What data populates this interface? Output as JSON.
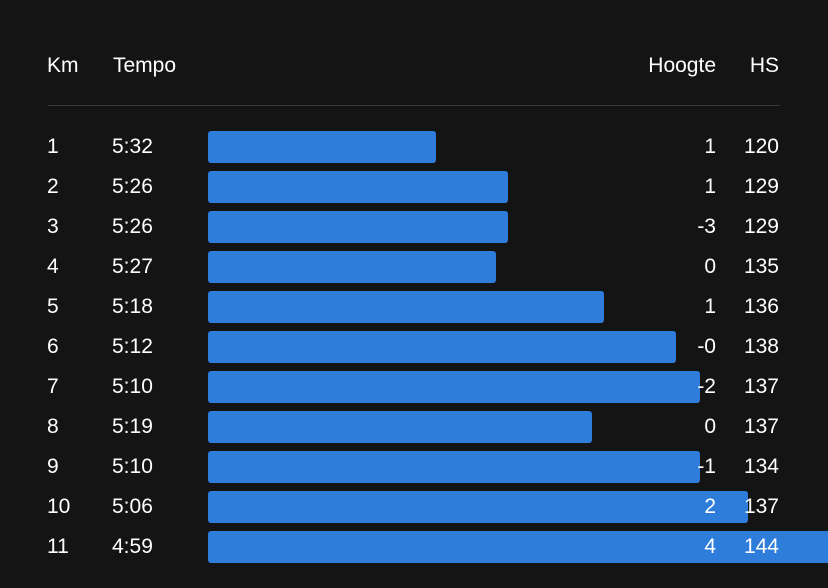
{
  "colors": {
    "background": "#141414",
    "bar": "#2f7ddb",
    "divider": "#3a3a3a",
    "text": "#ffffff"
  },
  "header": {
    "km": "Km",
    "tempo": "Tempo",
    "hoogte": "Hoogte",
    "hs": "HS"
  },
  "splits": [
    {
      "km": "1",
      "tempo": "5:32",
      "hoogte": "1",
      "hs": "120",
      "pace_seconds": 332
    },
    {
      "km": "2",
      "tempo": "5:26",
      "hoogte": "1",
      "hs": "129",
      "pace_seconds": 326
    },
    {
      "km": "3",
      "tempo": "5:26",
      "hoogte": "-3",
      "hs": "129",
      "pace_seconds": 326
    },
    {
      "km": "4",
      "tempo": "5:27",
      "hoogte": "0",
      "hs": "135",
      "pace_seconds": 327
    },
    {
      "km": "5",
      "tempo": "5:18",
      "hoogte": "1",
      "hs": "136",
      "pace_seconds": 318
    },
    {
      "km": "6",
      "tempo": "5:12",
      "hoogte": "-0",
      "hs": "138",
      "pace_seconds": 312
    },
    {
      "km": "7",
      "tempo": "5:10",
      "hoogte": "-2",
      "hs": "137",
      "pace_seconds": 310
    },
    {
      "km": "8",
      "tempo": "5:19",
      "hoogte": "0",
      "hs": "137",
      "pace_seconds": 319
    },
    {
      "km": "9",
      "tempo": "5:10",
      "hoogte": "-1",
      "hs": "134",
      "pace_seconds": 310
    },
    {
      "km": "10",
      "tempo": "5:06",
      "hoogte": "2",
      "hs": "137",
      "pace_seconds": 306
    },
    {
      "km": "11",
      "tempo": "4:59",
      "hoogte": "4",
      "hs": "144",
      "pace_seconds": 299
    }
  ]
}
